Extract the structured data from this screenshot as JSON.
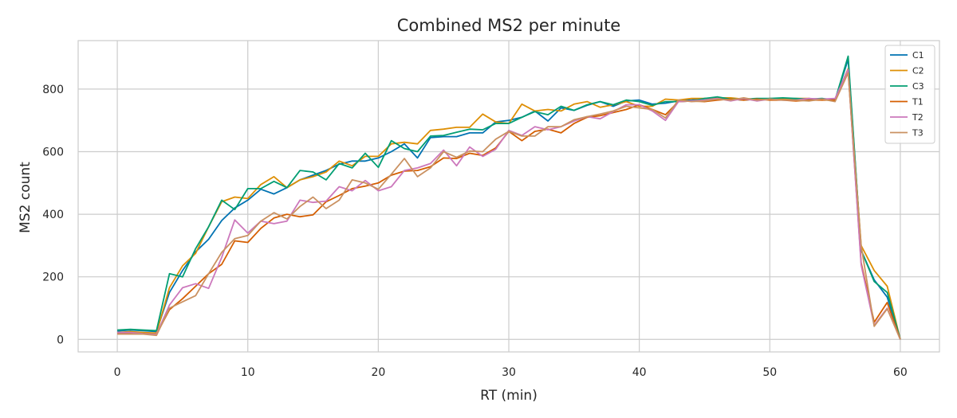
{
  "chart_data": {
    "type": "line",
    "title": "Combined MS2 per minute",
    "xlabel": "RT (min)",
    "ylabel": "MS2 count",
    "xlim": [
      -3,
      63
    ],
    "ylim": [
      -40,
      955
    ],
    "xticks": [
      0,
      10,
      20,
      30,
      40,
      50,
      60
    ],
    "yticks": [
      0,
      200,
      400,
      600,
      800
    ],
    "grid": true,
    "legend_position": "top-right",
    "x": [
      0,
      1,
      2,
      3,
      4,
      5,
      6,
      7,
      8,
      9,
      10,
      11,
      12,
      13,
      14,
      15,
      16,
      17,
      18,
      19,
      20,
      21,
      22,
      23,
      24,
      25,
      26,
      27,
      28,
      29,
      30,
      31,
      32,
      33,
      34,
      35,
      36,
      37,
      38,
      39,
      40,
      41,
      42,
      43,
      44,
      45,
      46,
      47,
      48,
      49,
      50,
      51,
      52,
      53,
      54,
      55,
      56,
      57,
      58,
      59,
      60
    ],
    "series": [
      {
        "name": "C1",
        "color": "#0173b2",
        "values": [
          27,
          30,
          28,
          25,
          150,
          220,
          280,
          320,
          380,
          420,
          445,
          480,
          465,
          485,
          510,
          525,
          540,
          560,
          570,
          570,
          580,
          600,
          625,
          580,
          645,
          648,
          648,
          660,
          660,
          695,
          700,
          710,
          730,
          698,
          740,
          732,
          748,
          760,
          745,
          762,
          765,
          752,
          755,
          762,
          765,
          770,
          772,
          768,
          765,
          768,
          768,
          770,
          768,
          768,
          768,
          765,
          895,
          285,
          190,
          135,
          0
        ]
      },
      {
        "name": "C2",
        "color": "#de8f05",
        "values": [
          22,
          25,
          22,
          20,
          165,
          235,
          275,
          360,
          440,
          455,
          450,
          495,
          520,
          485,
          510,
          520,
          535,
          570,
          555,
          585,
          585,
          625,
          630,
          625,
          668,
          672,
          678,
          678,
          720,
          695,
          690,
          752,
          730,
          735,
          730,
          752,
          760,
          742,
          750,
          760,
          745,
          745,
          768,
          765,
          770,
          770,
          772,
          772,
          768,
          765,
          770,
          768,
          770,
          770,
          765,
          768,
          865,
          300,
          220,
          170,
          0
        ]
      },
      {
        "name": "C3",
        "color": "#029e73",
        "values": [
          30,
          32,
          30,
          28,
          210,
          200,
          290,
          360,
          445,
          415,
          482,
          482,
          505,
          485,
          540,
          535,
          510,
          562,
          548,
          595,
          550,
          635,
          610,
          600,
          650,
          652,
          662,
          672,
          670,
          690,
          690,
          710,
          728,
          718,
          745,
          732,
          750,
          760,
          750,
          765,
          760,
          748,
          760,
          760,
          762,
          770,
          775,
          768,
          768,
          770,
          770,
          772,
          770,
          768,
          770,
          765,
          905,
          285,
          185,
          150,
          0
        ]
      },
      {
        "name": "T1",
        "color": "#d55e00",
        "values": [
          18,
          18,
          18,
          16,
          95,
          130,
          170,
          210,
          240,
          315,
          310,
          355,
          388,
          400,
          392,
          398,
          440,
          460,
          482,
          490,
          500,
          525,
          538,
          540,
          552,
          580,
          578,
          595,
          588,
          612,
          665,
          635,
          665,
          672,
          660,
          690,
          710,
          715,
          725,
          735,
          750,
          735,
          718,
          760,
          762,
          760,
          765,
          768,
          765,
          768,
          765,
          765,
          762,
          765,
          765,
          765,
          860,
          245,
          55,
          118,
          0
        ]
      },
      {
        "name": "T2",
        "color": "#cc78bc",
        "values": [
          22,
          22,
          18,
          16,
          110,
          165,
          178,
          163,
          262,
          382,
          340,
          378,
          370,
          378,
          445,
          438,
          442,
          488,
          475,
          508,
          475,
          488,
          540,
          548,
          562,
          605,
          555,
          615,
          585,
          608,
          668,
          652,
          680,
          670,
          680,
          698,
          712,
          705,
          728,
          750,
          750,
          730,
          700,
          760,
          762,
          765,
          770,
          762,
          770,
          762,
          768,
          765,
          765,
          770,
          768,
          770,
          862,
          238,
          45,
          100,
          0
        ]
      },
      {
        "name": "T3",
        "color": "#ca9161",
        "values": [
          17,
          17,
          17,
          13,
          100,
          120,
          140,
          210,
          278,
          322,
          332,
          378,
          405,
          385,
          425,
          455,
          418,
          445,
          510,
          500,
          480,
          528,
          578,
          520,
          548,
          600,
          582,
          602,
          600,
          640,
          665,
          650,
          650,
          680,
          680,
          702,
          712,
          720,
          730,
          745,
          740,
          735,
          708,
          765,
          760,
          762,
          768,
          765,
          772,
          765,
          768,
          765,
          765,
          762,
          768,
          760,
          852,
          300,
          42,
          98,
          0
        ]
      }
    ]
  }
}
